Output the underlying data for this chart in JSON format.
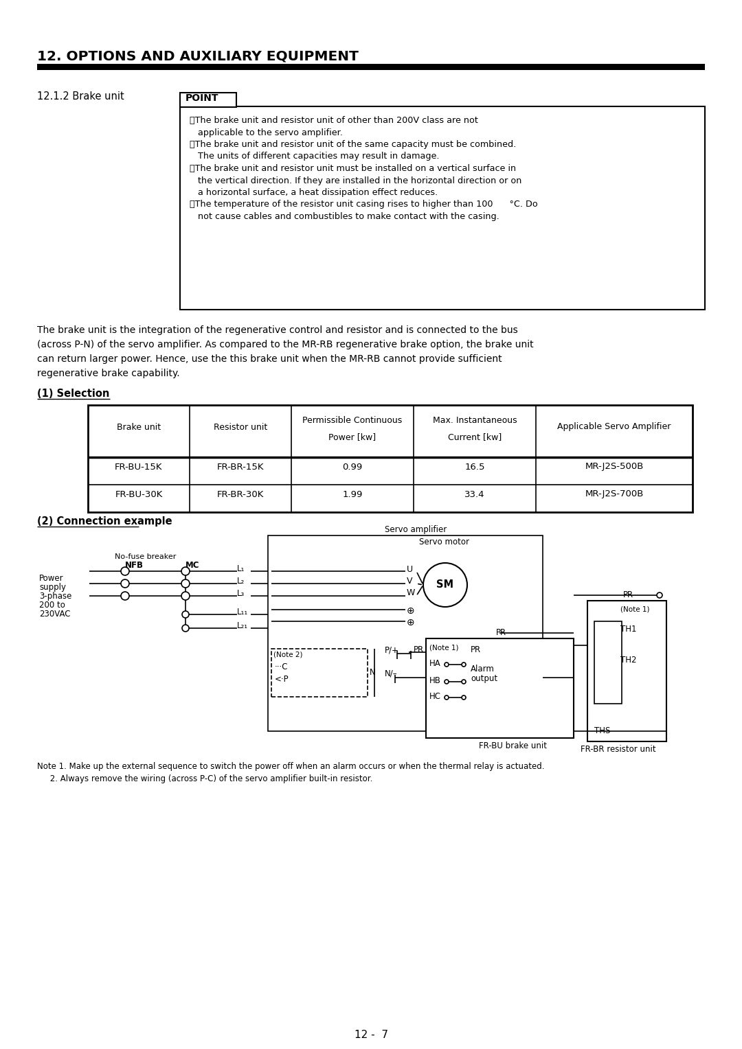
{
  "page_title": "12. OPTIONS AND AUXILIARY EQUIPMENT",
  "section": "12.1.2 Brake unit",
  "point_title": "POINT",
  "point_bullets": [
    "・The brake unit and resistor unit of other than 200V class are not",
    "   applicable to the servo amplifier.",
    "・The brake unit and resistor unit of the same capacity must be combined.",
    "   The units of different capacities may result in damage.",
    "・The brake unit and resistor unit must be installed on a vertical surface in",
    "   the vertical direction. If they are installed in the horizontal direction or on",
    "   a horizontal surface, a heat dissipation effect reduces.",
    "・The temperature of the resistor unit casing rises to higher than 100      °C. Do",
    "   not cause cables and combustibles to make contact with the casing."
  ],
  "body_lines": [
    "The brake unit is the integration of the regenerative control and resistor and is connected to the bus",
    "(across P-N) of the servo amplifier. As compared to the MR-RB regenerative brake option, the brake unit",
    "can return larger power. Hence, use the this brake unit when the MR-RB cannot provide sufficient",
    "regenerative brake capability."
  ],
  "selection_title": "(1) Selection",
  "table_headers": [
    "Brake unit",
    "Resistor unit",
    "Permissible Continuous\nPower [kw]",
    "Max. Instantaneous\nCurrent [kw]",
    "Applicable Servo Amplifier"
  ],
  "table_rows": [
    [
      "FR-BU-15K",
      "FR-BR-15K",
      "0.99",
      "16.5",
      "MR-J2S-500B"
    ],
    [
      "FR-BU-30K",
      "FR-BR-30K",
      "1.99",
      "33.4",
      "MR-J2S-700B"
    ]
  ],
  "connection_title": "(2) Connection example",
  "note1": "Note 1. Make up the external sequence to switch the power off when an alarm occurs or when the thermal relay is actuated.",
  "note2": "     2. Always remove the wiring (across P-C) of the servo amplifier built-in resistor.",
  "footer_text": "12 -  7",
  "bg_color": "#ffffff"
}
